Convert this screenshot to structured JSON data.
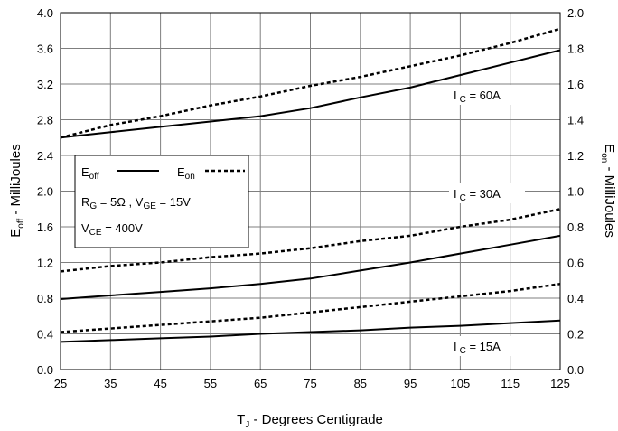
{
  "chart_data": {
    "type": "line",
    "x_ticks": [
      "25",
      "35",
      "45",
      "55",
      "65",
      "75",
      "85",
      "95",
      "105",
      "115",
      "125"
    ],
    "y_left_ticks": [
      "0.0",
      "0.4",
      "0.8",
      "1.2",
      "1.6",
      "2.0",
      "2.4",
      "2.8",
      "3.2",
      "3.6",
      "4.0"
    ],
    "y_right_ticks": [
      "0.0",
      "0.2",
      "0.4",
      "0.6",
      "0.8",
      "1.0",
      "1.2",
      "1.4",
      "1.6",
      "1.8",
      "2.0"
    ],
    "xlim": [
      25,
      125
    ],
    "ylim_left": [
      0,
      4.0
    ],
    "ylim_right": [
      0,
      2.0
    ],
    "xlabel": {
      "main": "T",
      "sub": "J",
      "rest": " - Degrees Centigrade"
    },
    "ylabel_left": {
      "main": "E",
      "sub": "off",
      "rest": " - MilliJoules"
    },
    "ylabel_right": {
      "main": "E",
      "sub": "on",
      "rest": " - MilliJoules"
    },
    "grid": true,
    "legend": {
      "placement": "center-left",
      "line1": {
        "eoff_main": "E",
        "eoff_sub": "off",
        "eon_main": "E",
        "eon_sub": "on"
      },
      "line2": {
        "r_main": "R",
        "r_sub": "G",
        "r_val": " = 5Ω ,  V",
        "v_sub": "GE",
        "v_val": " = 15V"
      },
      "line3": {
        "main": "V",
        "sub": "CE",
        "val": " = 400V"
      }
    },
    "annotations": [
      {
        "main": "I",
        "sub": "C",
        "val": " = 60A"
      },
      {
        "main": "I",
        "sub": "C",
        "val": " = 30A"
      },
      {
        "main": "I",
        "sub": "C",
        "val": " = 15A"
      }
    ],
    "series": [
      {
        "axis": "left",
        "style": "solid",
        "current": "60A",
        "x": [
          25,
          35,
          45,
          55,
          65,
          75,
          85,
          95,
          105,
          115,
          125
        ],
        "y": [
          2.6,
          2.66,
          2.72,
          2.78,
          2.84,
          2.93,
          3.05,
          3.16,
          3.3,
          3.44,
          3.58
        ]
      },
      {
        "axis": "right",
        "style": "dashed",
        "current": "60A",
        "x": [
          25,
          35,
          45,
          55,
          65,
          75,
          85,
          95,
          105,
          115,
          125
        ],
        "y": [
          1.3,
          1.37,
          1.42,
          1.48,
          1.53,
          1.59,
          1.64,
          1.7,
          1.76,
          1.83,
          1.91
        ]
      },
      {
        "axis": "left",
        "style": "solid",
        "current": "30A",
        "x": [
          25,
          35,
          45,
          55,
          65,
          75,
          85,
          95,
          105,
          115,
          125
        ],
        "y": [
          0.79,
          0.83,
          0.87,
          0.91,
          0.96,
          1.02,
          1.11,
          1.2,
          1.3,
          1.4,
          1.5
        ]
      },
      {
        "axis": "right",
        "style": "dashed",
        "current": "30A",
        "x": [
          25,
          35,
          45,
          55,
          65,
          75,
          85,
          95,
          105,
          115,
          125
        ],
        "y": [
          0.55,
          0.58,
          0.6,
          0.63,
          0.65,
          0.68,
          0.72,
          0.75,
          0.8,
          0.84,
          0.9
        ]
      },
      {
        "axis": "left",
        "style": "solid",
        "current": "15A",
        "x": [
          25,
          35,
          45,
          55,
          65,
          75,
          85,
          95,
          105,
          115,
          125
        ],
        "y": [
          0.31,
          0.33,
          0.35,
          0.37,
          0.4,
          0.42,
          0.44,
          0.47,
          0.49,
          0.52,
          0.55
        ]
      },
      {
        "axis": "right",
        "style": "dashed",
        "current": "15A",
        "x": [
          25,
          35,
          45,
          55,
          65,
          75,
          85,
          95,
          105,
          115,
          125
        ],
        "y": [
          0.21,
          0.23,
          0.25,
          0.27,
          0.29,
          0.32,
          0.35,
          0.38,
          0.41,
          0.44,
          0.48
        ]
      }
    ]
  }
}
